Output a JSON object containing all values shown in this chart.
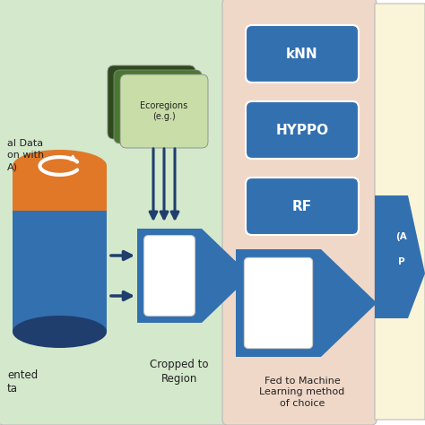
{
  "bg_color": "#ffffff",
  "panel1_color": "#d4e8cc",
  "panel2_color": "#f0d8c8",
  "panel3_color": "#faf5d8",
  "blue_dark": "#1f3e6e",
  "blue_mid": "#3370b0",
  "orange": "#e07828",
  "green_dark": "#2e4a1e",
  "green_mid": "#4a7830",
  "green_light": "#c8dda8",
  "white": "#ffffff",
  "label_cropped": "Cropped to\nRegion",
  "label_ml": "Fed to Machine\nLearning method\nof choice",
  "label_ecoregions": "Ecoregions\n(e.g.)",
  "knn_label": "kNN",
  "hyppo_label": "HYPPO",
  "rf_label": "RF",
  "text_al_data": "al Data\non with\nA)",
  "text_ented": "ented\nta"
}
